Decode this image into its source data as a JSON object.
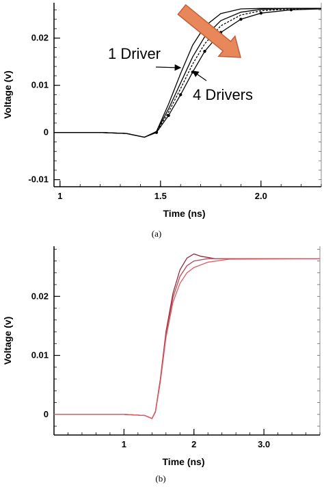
{
  "chart_data": [
    {
      "panel": "(a)",
      "type": "line",
      "xlabel": "Time (ns)",
      "ylabel": "Voltage (v)",
      "xlim": [
        0.97,
        2.3
      ],
      "ylim": [
        -0.0115,
        0.0275
      ],
      "x_ticks": [
        1,
        1.5,
        2.0
      ],
      "x_tick_labels": [
        "1",
        "1.5",
        "2.0"
      ],
      "y_ticks": [
        -0.01,
        0,
        0.01,
        0.02
      ],
      "y_tick_labels": [
        "-0.01",
        "0",
        "0.01",
        "0.02"
      ],
      "annotations": [
        "1 Driver",
        "4 Drivers"
      ],
      "arrow_color": "#e8875a",
      "series": [
        {
          "color": "#000000",
          "dash": "none",
          "marker": "none",
          "points": [
            [
              0.97,
              0
            ],
            [
              1.2,
              0
            ],
            [
              1.33,
              -0.0002
            ],
            [
              1.42,
              -0.001
            ],
            [
              1.48,
              0.0002
            ],
            [
              1.54,
              0.006
            ],
            [
              1.6,
              0.0125
            ],
            [
              1.66,
              0.0185
            ],
            [
              1.72,
              0.0225
            ],
            [
              1.8,
              0.0252
            ],
            [
              1.9,
              0.0262
            ],
            [
              2.0,
              0.0263
            ],
            [
              2.3,
              0.0263
            ]
          ]
        },
        {
          "color": "#000000",
          "dash": "none",
          "marker": "none",
          "points": [
            [
              0.97,
              0
            ],
            [
              1.2,
              0
            ],
            [
              1.33,
              -0.0002
            ],
            [
              1.42,
              -0.001
            ],
            [
              1.48,
              0.0002
            ],
            [
              1.54,
              0.005
            ],
            [
              1.6,
              0.0105
            ],
            [
              1.66,
              0.016
            ],
            [
              1.72,
              0.0203
            ],
            [
              1.8,
              0.0237
            ],
            [
              1.9,
              0.0255
            ],
            [
              2.0,
              0.0261
            ],
            [
              2.15,
              0.0263
            ],
            [
              2.3,
              0.0263
            ]
          ]
        },
        {
          "color": "#000000",
          "dash": "3,2",
          "marker": "none",
          "points": [
            [
              0.97,
              0
            ],
            [
              1.2,
              0
            ],
            [
              1.33,
              -0.0002
            ],
            [
              1.42,
              -0.001
            ],
            [
              1.48,
              0.0001
            ],
            [
              1.54,
              0.0043
            ],
            [
              1.6,
              0.0093
            ],
            [
              1.66,
              0.0145
            ],
            [
              1.72,
              0.0188
            ],
            [
              1.8,
              0.0226
            ],
            [
              1.9,
              0.0249
            ],
            [
              2.0,
              0.0258
            ],
            [
              2.15,
              0.0262
            ],
            [
              2.3,
              0.0263
            ]
          ]
        },
        {
          "color": "#000000",
          "dash": "none",
          "marker": "dot",
          "points": [
            [
              0.97,
              0
            ],
            [
              1.2,
              0
            ],
            [
              1.33,
              -0.0002
            ],
            [
              1.42,
              -0.001
            ],
            [
              1.48,
              0.0
            ],
            [
              1.54,
              0.0036
            ],
            [
              1.6,
              0.008
            ],
            [
              1.66,
              0.0128
            ],
            [
              1.72,
              0.0172
            ],
            [
              1.8,
              0.0212
            ],
            [
              1.9,
              0.024
            ],
            [
              2.0,
              0.0253
            ],
            [
              2.15,
              0.026
            ],
            [
              2.3,
              0.0262
            ]
          ]
        }
      ]
    },
    {
      "panel": "(b)",
      "type": "line",
      "xlabel": "Time (ns)",
      "ylabel": "Voltage (v)",
      "xlim": [
        0.0,
        3.8
      ],
      "ylim": [
        -0.0035,
        0.0285
      ],
      "x_ticks": [
        1,
        2,
        3
      ],
      "x_tick_labels": [
        "1",
        "2",
        "3.0"
      ],
      "y_ticks": [
        0,
        0.01,
        0.02
      ],
      "y_tick_labels": [
        "0",
        "0.01",
        "0.02"
      ],
      "series": [
        {
          "color": "#8c2a3a",
          "dash": "none",
          "marker": "none",
          "points": [
            [
              0.0,
              0
            ],
            [
              1.0,
              0
            ],
            [
              1.3,
              -0.0002
            ],
            [
              1.4,
              -0.0007
            ],
            [
              1.45,
              0.0005
            ],
            [
              1.52,
              0.006
            ],
            [
              1.6,
              0.014
            ],
            [
              1.7,
              0.0205
            ],
            [
              1.8,
              0.0245
            ],
            [
              1.9,
              0.0265
            ],
            [
              2.0,
              0.0272
            ],
            [
              2.1,
              0.0268
            ],
            [
              2.3,
              0.0264
            ],
            [
              3.8,
              0.0264
            ]
          ]
        },
        {
          "color": "#b84455",
          "dash": "none",
          "marker": "none",
          "points": [
            [
              0.0,
              0
            ],
            [
              1.0,
              0
            ],
            [
              1.3,
              -0.0002
            ],
            [
              1.4,
              -0.0007
            ],
            [
              1.45,
              0.0004
            ],
            [
              1.52,
              0.0058
            ],
            [
              1.6,
              0.0136
            ],
            [
              1.7,
              0.0198
            ],
            [
              1.8,
              0.0234
            ],
            [
              1.9,
              0.0252
            ],
            [
              2.0,
              0.026
            ],
            [
              2.2,
              0.0264
            ],
            [
              3.8,
              0.0264
            ]
          ]
        },
        {
          "color": "#e05a60",
          "dash": "none",
          "marker": "none",
          "points": [
            [
              0.0,
              0
            ],
            [
              1.0,
              0
            ],
            [
              1.3,
              -0.0002
            ],
            [
              1.4,
              -0.0007
            ],
            [
              1.45,
              0.0004
            ],
            [
              1.52,
              0.0055
            ],
            [
              1.6,
              0.013
            ],
            [
              1.7,
              0.019
            ],
            [
              1.8,
              0.0222
            ],
            [
              1.9,
              0.024
            ],
            [
              2.0,
              0.0249
            ],
            [
              2.2,
              0.0258
            ],
            [
              2.5,
              0.0263
            ],
            [
              3.8,
              0.0264
            ]
          ]
        }
      ]
    }
  ],
  "captions": [
    "(a)",
    "(b)"
  ]
}
